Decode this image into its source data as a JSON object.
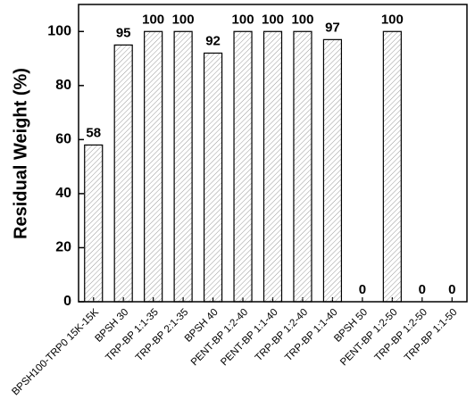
{
  "chart_data": {
    "type": "bar",
    "y_label": "Residual Weight (%)",
    "categories": [
      "BPSH100-TRP0 15K-15K",
      "BPSH 30",
      "TRP-BP 1:1-35",
      "TRP-BP 2:1-35",
      "BPSH 40",
      "PENT-BP 1:2-40",
      "PENT-BP 1:1-40",
      "TRP-BP 1:2-40",
      "TRP-BP 1:1-40",
      "BPSH 50",
      "PENT-BP 1:2-50",
      "TRP-BP 1:2-50",
      "TRP-BP 1:1-50"
    ],
    "values": [
      58,
      95,
      100,
      100,
      92,
      100,
      100,
      100,
      97,
      0,
      100,
      0,
      0
    ],
    "color": "#ffffff",
    "ylim": [
      0,
      110
    ],
    "yticks": [
      0,
      20,
      40,
      60,
      80,
      100
    ]
  }
}
